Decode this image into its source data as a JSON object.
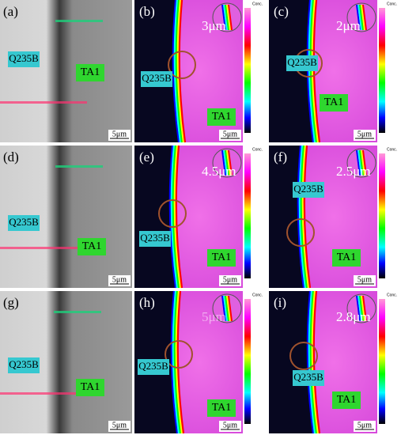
{
  "panels": [
    {
      "label": "(a)",
      "type": "sem",
      "q235b": "Q235B",
      "ta1": "TA1",
      "scale": "5μm"
    },
    {
      "label": "(b)",
      "type": "eds",
      "q235b": "Q235B",
      "ta1": "TA1",
      "scale": "5μm",
      "thickness": "3μm",
      "colorbar_title": "Conc."
    },
    {
      "label": "(c)",
      "type": "eds",
      "q235b": "Q235B",
      "ta1": "TA1",
      "scale": "5μm",
      "thickness": "2μm",
      "colorbar_title": "Conc."
    },
    {
      "label": "(d)",
      "type": "sem",
      "q235b": "Q235B",
      "ta1": "TA1",
      "scale": "5μm"
    },
    {
      "label": "(e)",
      "type": "eds",
      "q235b": "Q235B",
      "ta1": "TA1",
      "scale": "5μm",
      "thickness": "4.5μm",
      "colorbar_title": "Conc."
    },
    {
      "label": "(f)",
      "type": "eds",
      "q235b": "Q235B",
      "ta1": "TA1",
      "scale": "5μm",
      "thickness": "2.5μm",
      "colorbar_title": "Conc."
    },
    {
      "label": "(g)",
      "type": "sem",
      "q235b": "Q235B",
      "ta1": "TA1",
      "scale": "5μm"
    },
    {
      "label": "(h)",
      "type": "eds",
      "q235b": "Q235B",
      "ta1": "TA1",
      "scale": "5μm",
      "thickness": "5μm",
      "colorbar_title": "Conc."
    },
    {
      "label": "(i)",
      "type": "eds",
      "q235b": "Q235B",
      "ta1": "TA1",
      "scale": "5μm",
      "thickness": "2.8μm",
      "colorbar_title": "Conc."
    }
  ]
}
